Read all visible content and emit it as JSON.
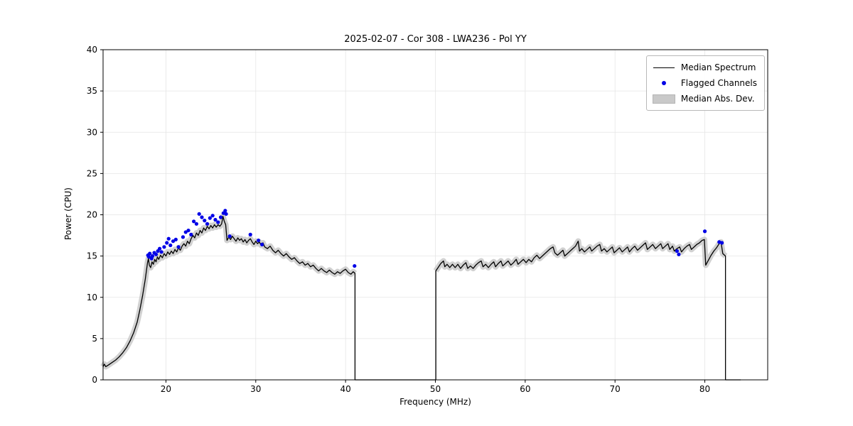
{
  "chart_data": {
    "type": "line",
    "title": "2025-02-07 - Cor 308 - LWA236 - Pol YY",
    "xlabel": "Frequency (MHz)",
    "ylabel": "Power (CPU)",
    "xlim": [
      13,
      87
    ],
    "ylim": [
      0,
      40
    ],
    "xticks": [
      20,
      30,
      40,
      50,
      60,
      70,
      80
    ],
    "yticks": [
      0,
      5,
      10,
      15,
      20,
      25,
      30,
      35,
      40
    ],
    "grid": true,
    "grid_color": "#e5e5e5",
    "frame_color": "#000000",
    "mad_halfwidth": 0.35,
    "legend": {
      "position": "upper right",
      "entries": [
        {
          "label": "Median Spectrum",
          "type": "line",
          "color": "#000000"
        },
        {
          "label": "Flagged Channels",
          "type": "marker",
          "color": "#0000e6"
        },
        {
          "label": "Median Abs. Dev.",
          "type": "band",
          "color": "#c9c9c9"
        }
      ]
    },
    "series": [
      {
        "name": "Median Spectrum segment 1",
        "color": "#000000",
        "rise_from_zero": false,
        "drop_to_zero_at_end": true,
        "zero_extend_to": 50,
        "points": [
          [
            13.0,
            1.6
          ],
          [
            13.15,
            1.9
          ],
          [
            13.3,
            1.6
          ],
          [
            13.6,
            1.8
          ],
          [
            14.0,
            2.1
          ],
          [
            14.4,
            2.4
          ],
          [
            14.8,
            2.8
          ],
          [
            15.2,
            3.3
          ],
          [
            15.6,
            3.9
          ],
          [
            16.0,
            4.7
          ],
          [
            16.4,
            5.7
          ],
          [
            16.8,
            7.0
          ],
          [
            17.1,
            8.5
          ],
          [
            17.4,
            10.2
          ],
          [
            17.7,
            12.2
          ],
          [
            17.95,
            14.2
          ],
          [
            18.05,
            14.7
          ],
          [
            18.15,
            13.9
          ],
          [
            18.3,
            13.6
          ],
          [
            18.45,
            14.3
          ],
          [
            18.6,
            14.0
          ],
          [
            18.75,
            14.6
          ],
          [
            18.9,
            14.3
          ],
          [
            19.05,
            14.9
          ],
          [
            19.2,
            14.6
          ],
          [
            19.4,
            15.1
          ],
          [
            19.6,
            14.8
          ],
          [
            19.8,
            15.3
          ],
          [
            20.0,
            15.0
          ],
          [
            20.2,
            15.5
          ],
          [
            20.4,
            15.2
          ],
          [
            20.6,
            15.6
          ],
          [
            20.8,
            15.3
          ],
          [
            21.0,
            15.8
          ],
          [
            21.2,
            15.5
          ],
          [
            21.4,
            16.0
          ],
          [
            21.6,
            15.7
          ],
          [
            21.8,
            16.2
          ],
          [
            22.0,
            16.5
          ],
          [
            22.2,
            16.2
          ],
          [
            22.4,
            16.8
          ],
          [
            22.6,
            16.5
          ],
          [
            22.8,
            17.1
          ],
          [
            23.0,
            17.5
          ],
          [
            23.2,
            17.2
          ],
          [
            23.4,
            17.8
          ],
          [
            23.6,
            17.5
          ],
          [
            23.8,
            18.1
          ],
          [
            24.0,
            17.8
          ],
          [
            24.2,
            18.4
          ],
          [
            24.4,
            18.1
          ],
          [
            24.6,
            18.6
          ],
          [
            24.8,
            18.3
          ],
          [
            25.0,
            18.7
          ],
          [
            25.2,
            18.4
          ],
          [
            25.4,
            18.8
          ],
          [
            25.6,
            18.5
          ],
          [
            25.8,
            18.8
          ],
          [
            26.0,
            18.6
          ],
          [
            26.2,
            18.9
          ],
          [
            26.35,
            19.8
          ],
          [
            26.5,
            19.2
          ],
          [
            26.65,
            18.8
          ],
          [
            26.8,
            16.9
          ],
          [
            27.0,
            17.3
          ],
          [
            27.2,
            17.0
          ],
          [
            27.4,
            17.4
          ],
          [
            27.6,
            17.1
          ],
          [
            27.8,
            16.8
          ],
          [
            28.0,
            17.2
          ],
          [
            28.2,
            16.9
          ],
          [
            28.4,
            17.1
          ],
          [
            28.6,
            16.7
          ],
          [
            28.8,
            17.0
          ],
          [
            29.0,
            16.6
          ],
          [
            29.2,
            16.9
          ],
          [
            29.4,
            17.1
          ],
          [
            29.6,
            16.7
          ],
          [
            29.8,
            16.4
          ],
          [
            30.0,
            16.8
          ],
          [
            30.2,
            16.5
          ],
          [
            30.4,
            16.7
          ],
          [
            30.6,
            16.3
          ],
          [
            30.8,
            16.6
          ],
          [
            31.0,
            16.1
          ],
          [
            31.3,
            15.9
          ],
          [
            31.6,
            16.2
          ],
          [
            31.9,
            15.7
          ],
          [
            32.2,
            15.4
          ],
          [
            32.5,
            15.7
          ],
          [
            32.8,
            15.3
          ],
          [
            33.1,
            15.0
          ],
          [
            33.4,
            15.3
          ],
          [
            33.7,
            14.9
          ],
          [
            34.0,
            14.6
          ],
          [
            34.3,
            14.8
          ],
          [
            34.6,
            14.4
          ],
          [
            34.9,
            14.1
          ],
          [
            35.2,
            14.3
          ],
          [
            35.5,
            13.9
          ],
          [
            35.8,
            14.1
          ],
          [
            36.1,
            13.7
          ],
          [
            36.4,
            13.9
          ],
          [
            36.7,
            13.5
          ],
          [
            37.0,
            13.2
          ],
          [
            37.3,
            13.5
          ],
          [
            37.6,
            13.2
          ],
          [
            37.9,
            13.0
          ],
          [
            38.2,
            13.3
          ],
          [
            38.5,
            13.0
          ],
          [
            38.8,
            12.8
          ],
          [
            39.1,
            13.1
          ],
          [
            39.4,
            12.9
          ],
          [
            39.7,
            13.2
          ],
          [
            40.0,
            13.4
          ],
          [
            40.3,
            13.0
          ],
          [
            40.6,
            12.8
          ],
          [
            40.85,
            13.1
          ],
          [
            41.05,
            12.9
          ]
        ]
      },
      {
        "name": "Median Spectrum segment 2",
        "color": "#000000",
        "rise_from_zero": true,
        "drop_to_zero_at_end": true,
        "zero_extend_to": 84,
        "points": [
          [
            50.05,
            13.2
          ],
          [
            50.3,
            13.6
          ],
          [
            50.6,
            14.1
          ],
          [
            50.9,
            14.4
          ],
          [
            51.05,
            13.7
          ],
          [
            51.3,
            14.0
          ],
          [
            51.6,
            13.6
          ],
          [
            51.9,
            14.0
          ],
          [
            52.2,
            13.6
          ],
          [
            52.5,
            14.0
          ],
          [
            52.8,
            13.5
          ],
          [
            53.1,
            13.9
          ],
          [
            53.4,
            14.2
          ],
          [
            53.6,
            13.5
          ],
          [
            53.9,
            13.8
          ],
          [
            54.2,
            13.5
          ],
          [
            54.5,
            13.9
          ],
          [
            54.8,
            14.2
          ],
          [
            55.1,
            14.4
          ],
          [
            55.3,
            13.7
          ],
          [
            55.6,
            14.0
          ],
          [
            55.9,
            13.6
          ],
          [
            56.2,
            14.0
          ],
          [
            56.5,
            14.3
          ],
          [
            56.7,
            13.7
          ],
          [
            57.0,
            14.1
          ],
          [
            57.3,
            14.4
          ],
          [
            57.5,
            13.8
          ],
          [
            57.8,
            14.1
          ],
          [
            58.1,
            14.4
          ],
          [
            58.4,
            13.9
          ],
          [
            58.7,
            14.2
          ],
          [
            59.0,
            14.6
          ],
          [
            59.2,
            14.0
          ],
          [
            59.5,
            14.3
          ],
          [
            59.8,
            14.6
          ],
          [
            60.1,
            14.2
          ],
          [
            60.4,
            14.6
          ],
          [
            60.7,
            14.3
          ],
          [
            61.0,
            14.8
          ],
          [
            61.3,
            15.1
          ],
          [
            61.6,
            14.7
          ],
          [
            61.9,
            15.0
          ],
          [
            62.2,
            15.3
          ],
          [
            62.5,
            15.6
          ],
          [
            62.8,
            15.9
          ],
          [
            63.1,
            16.1
          ],
          [
            63.3,
            15.4
          ],
          [
            63.6,
            15.1
          ],
          [
            63.9,
            15.4
          ],
          [
            64.2,
            15.7
          ],
          [
            64.4,
            15.0
          ],
          [
            64.7,
            15.3
          ],
          [
            65.0,
            15.6
          ],
          [
            65.3,
            15.9
          ],
          [
            65.6,
            16.2
          ],
          [
            65.9,
            16.8
          ],
          [
            66.05,
            15.6
          ],
          [
            66.3,
            15.9
          ],
          [
            66.6,
            15.5
          ],
          [
            66.9,
            15.8
          ],
          [
            67.2,
            16.1
          ],
          [
            67.4,
            15.6
          ],
          [
            67.7,
            15.9
          ],
          [
            68.0,
            16.2
          ],
          [
            68.3,
            16.4
          ],
          [
            68.5,
            15.6
          ],
          [
            68.8,
            15.9
          ],
          [
            69.1,
            15.5
          ],
          [
            69.4,
            15.8
          ],
          [
            69.7,
            16.1
          ],
          [
            69.9,
            15.4
          ],
          [
            70.2,
            15.7
          ],
          [
            70.5,
            16.0
          ],
          [
            70.8,
            15.5
          ],
          [
            71.1,
            15.8
          ],
          [
            71.4,
            16.1
          ],
          [
            71.6,
            15.5
          ],
          [
            71.9,
            15.9
          ],
          [
            72.2,
            16.2
          ],
          [
            72.5,
            15.7
          ],
          [
            72.8,
            16.0
          ],
          [
            73.1,
            16.3
          ],
          [
            73.4,
            16.6
          ],
          [
            73.6,
            15.8
          ],
          [
            73.9,
            16.1
          ],
          [
            74.2,
            16.4
          ],
          [
            74.5,
            15.9
          ],
          [
            74.8,
            16.2
          ],
          [
            75.1,
            16.5
          ],
          [
            75.3,
            15.9
          ],
          [
            75.6,
            16.2
          ],
          [
            75.9,
            16.5
          ],
          [
            76.1,
            15.8
          ],
          [
            76.4,
            16.2
          ],
          [
            76.6,
            15.6
          ],
          [
            76.9,
            15.9
          ],
          [
            77.2,
            16.1
          ],
          [
            77.4,
            15.5
          ],
          [
            77.7,
            15.9
          ],
          [
            78.0,
            16.2
          ],
          [
            78.3,
            16.4
          ],
          [
            78.5,
            15.8
          ],
          [
            78.8,
            16.1
          ],
          [
            79.1,
            16.4
          ],
          [
            79.4,
            16.6
          ],
          [
            79.7,
            16.9
          ],
          [
            79.95,
            17.0
          ],
          [
            80.1,
            13.9
          ],
          [
            80.4,
            14.5
          ],
          [
            80.7,
            15.1
          ],
          [
            81.0,
            15.6
          ],
          [
            81.3,
            16.0
          ],
          [
            81.6,
            16.5
          ],
          [
            81.8,
            16.7
          ],
          [
            82.0,
            15.3
          ],
          [
            82.3,
            15.0
          ]
        ]
      }
    ],
    "flagged_channels": {
      "color": "#0000e6",
      "marker_radius": 2.6,
      "points": [
        [
          18.0,
          15.1
        ],
        [
          18.1,
          14.9
        ],
        [
          18.2,
          15.3
        ],
        [
          18.4,
          14.7
        ],
        [
          18.5,
          15.0
        ],
        [
          18.7,
          15.4
        ],
        [
          18.9,
          15.2
        ],
        [
          19.1,
          15.6
        ],
        [
          19.3,
          15.9
        ],
        [
          19.5,
          15.5
        ],
        [
          19.8,
          16.1
        ],
        [
          20.1,
          16.6
        ],
        [
          20.3,
          17.1
        ],
        [
          20.5,
          16.3
        ],
        [
          20.8,
          16.8
        ],
        [
          21.1,
          17.0
        ],
        [
          21.4,
          16.1
        ],
        [
          21.9,
          17.3
        ],
        [
          22.2,
          17.9
        ],
        [
          22.5,
          18.1
        ],
        [
          22.8,
          17.6
        ],
        [
          23.1,
          19.2
        ],
        [
          23.4,
          18.9
        ],
        [
          23.7,
          20.1
        ],
        [
          24.0,
          19.7
        ],
        [
          24.3,
          19.3
        ],
        [
          24.6,
          18.9
        ],
        [
          24.9,
          19.6
        ],
        [
          25.2,
          19.9
        ],
        [
          25.5,
          19.4
        ],
        [
          25.8,
          19.1
        ],
        [
          26.1,
          19.7
        ],
        [
          26.4,
          20.2
        ],
        [
          26.6,
          20.5
        ],
        [
          26.7,
          20.1
        ],
        [
          27.1,
          17.4
        ],
        [
          29.4,
          17.6
        ],
        [
          30.3,
          16.9
        ],
        [
          30.7,
          16.4
        ],
        [
          41.0,
          13.8
        ],
        [
          76.9,
          15.6
        ],
        [
          77.1,
          15.2
        ],
        [
          80.0,
          18.0
        ],
        [
          81.6,
          16.7
        ],
        [
          81.9,
          16.6
        ]
      ]
    }
  }
}
